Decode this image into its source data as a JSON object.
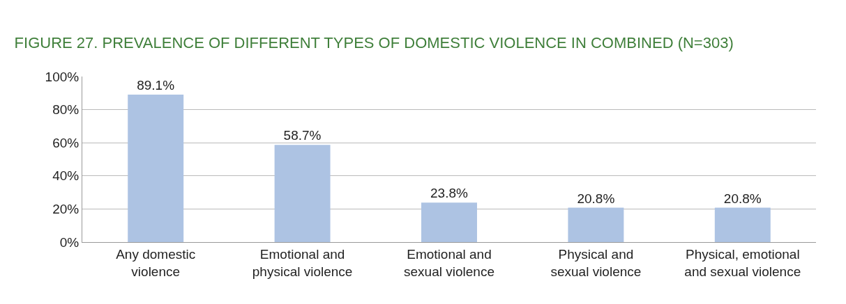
{
  "chart_data": {
    "type": "bar",
    "title": "FIGURE 27. PREVALENCE OF DIFFERENT TYPES OF DOMESTIC VIOLENCE IN COMBINED (N=303)",
    "categories": [
      "Any domestic violence",
      "Emotional and physical violence",
      "Emotional and sexual violence",
      "Physical and sexual violence",
      "Physical, emotional and sexual violence"
    ],
    "values": [
      89.1,
      58.7,
      23.8,
      20.8,
      20.8
    ],
    "value_labels": [
      "89.1%",
      "58.7%",
      "23.8%",
      "20.8%",
      "20.8%"
    ],
    "color": "#adc3e3",
    "ylim": [
      0,
      100
    ],
    "yticks": [
      {
        "value": 0,
        "label": "0%"
      },
      {
        "value": 20,
        "label": "20%"
      },
      {
        "value": 40,
        "label": "40%"
      },
      {
        "value": 60,
        "label": "60%"
      },
      {
        "value": 80,
        "label": "80%"
      },
      {
        "value": 100,
        "label": "100%"
      }
    ],
    "grid": "y",
    "legend": false
  }
}
